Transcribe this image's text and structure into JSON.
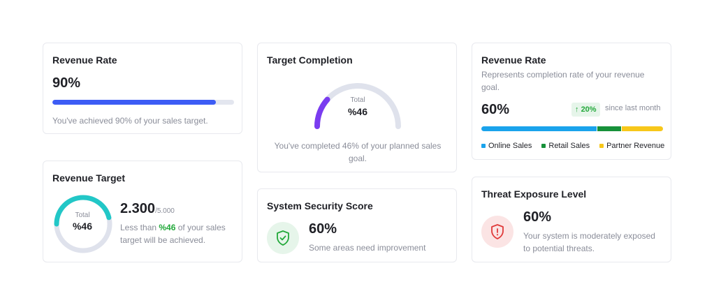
{
  "revenue_rate_card": {
    "title": "Revenue Rate",
    "value": "90%",
    "progress_percent": 90,
    "progress_color": "#3d5cf5",
    "note": "You've achieved 90% of your sales target."
  },
  "revenue_target_card": {
    "title": "Revenue Target",
    "ring_label": "Total",
    "ring_value": "%46",
    "ring_percent": 46,
    "ring_color": "#22c7c7",
    "amount": "2.300",
    "amount_total": "/5.000",
    "desc_prefix": "Less than ",
    "desc_highlight": "%46",
    "desc_suffix": " of your sales target will be achieved."
  },
  "target_completion_card": {
    "title": "Target Completion",
    "gauge_label": "Total",
    "gauge_value": "%46",
    "gauge_percent": 46,
    "gauge_color": "#7a3cf0",
    "note": "You've completed 46% of your planned sales goal."
  },
  "security_card": {
    "title": "System Security Score",
    "icon": "shield-check-icon",
    "value": "60%",
    "note": "Some areas need improvement"
  },
  "revenue_rate_detail_card": {
    "title": "Revenue Rate",
    "description": "Represents completion rate of your revenue goal.",
    "value": "60%",
    "change": "20%",
    "change_icon": "arrow-up-icon",
    "change_note": "since last month",
    "segments": [
      {
        "name": "Online Sales",
        "share": 64,
        "color": "#1aa3ec"
      },
      {
        "name": "Retail Sales",
        "share": 13,
        "color": "#17913a"
      },
      {
        "name": "Partner Revenue",
        "share": 23,
        "color": "#f7c71a"
      }
    ]
  },
  "threat_card": {
    "title": "Threat Exposure Level",
    "icon": "shield-alert-icon",
    "value": "60%",
    "note": "Your system is moderately exposed to potential threats."
  }
}
